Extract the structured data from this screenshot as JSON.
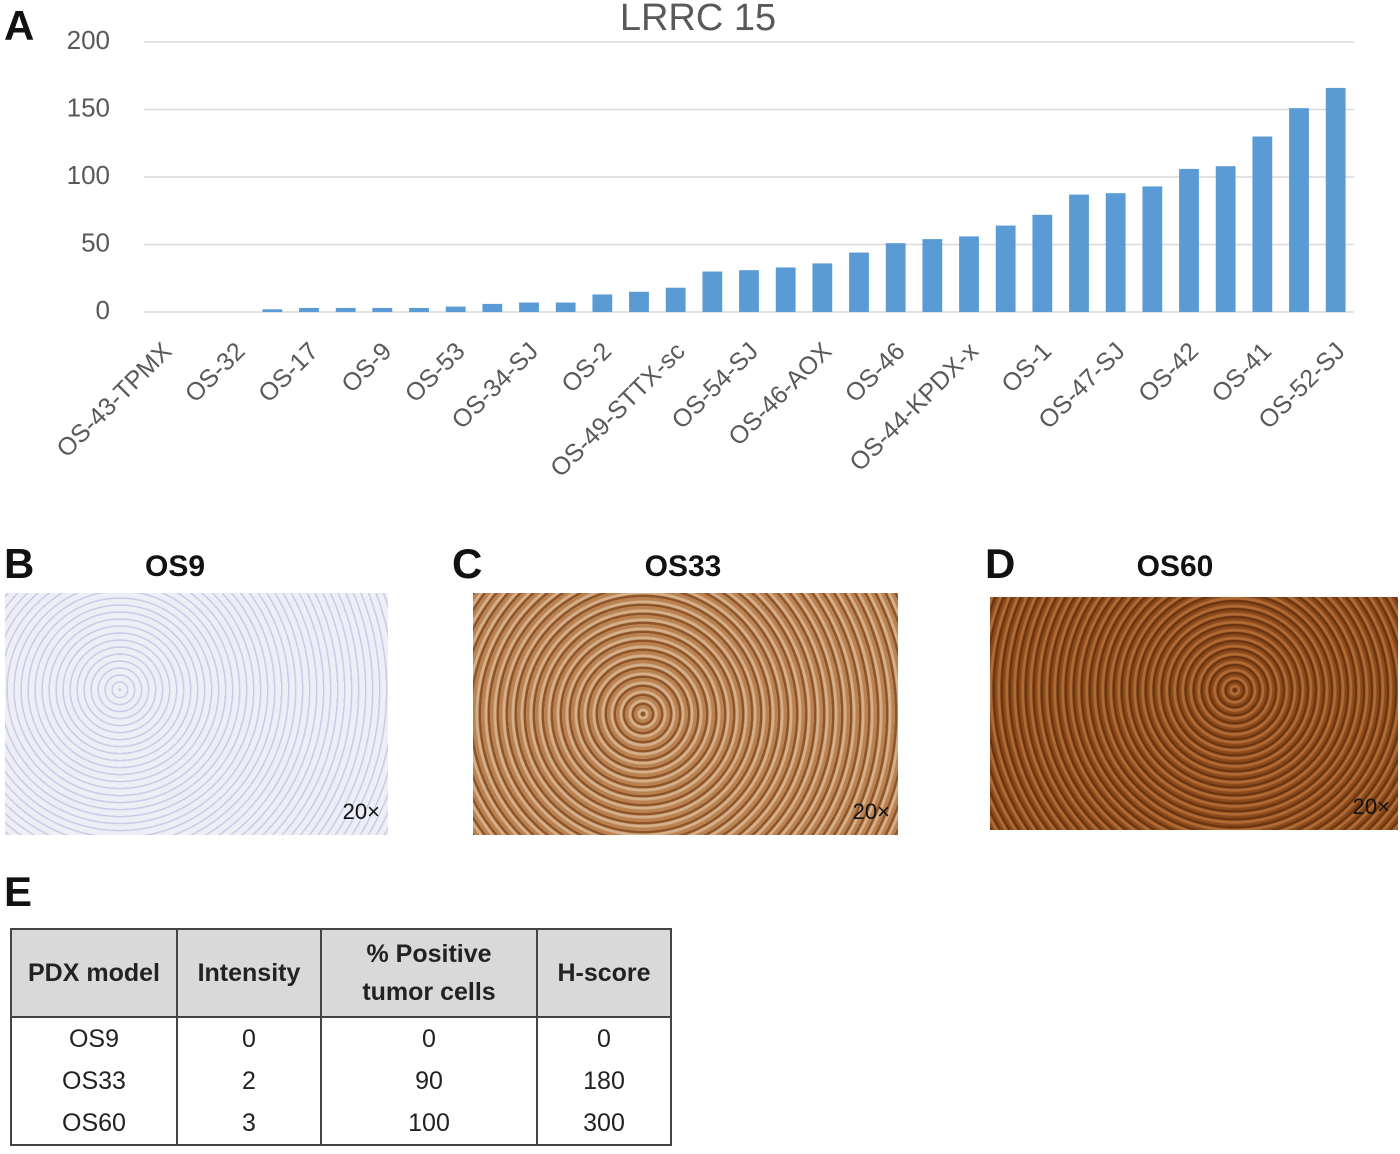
{
  "chart_data": {
    "type": "bar",
    "panel_letter": "A",
    "title": "LRRC 15",
    "categories": [
      "OS-43-TPMX",
      null,
      "OS-32",
      null,
      "OS-17",
      null,
      "OS-9",
      null,
      "OS-53",
      null,
      "OS-34-SJ",
      null,
      "OS-2",
      null,
      "OS-49-STTX-sc",
      null,
      "OS-54-SJ",
      null,
      "OS-46-AOX",
      null,
      "OS-46",
      null,
      "OS-44-KPDX-x",
      null,
      "OS-1",
      null,
      "OS-47-SJ",
      null,
      "OS-42",
      null,
      "OS-41",
      null,
      "OS-52-SJ"
    ],
    "values": [
      0,
      0,
      0,
      2,
      3,
      3,
      3,
      3,
      4,
      6,
      7,
      7,
      13,
      15,
      18,
      30,
      31,
      33,
      36,
      44,
      51,
      54,
      56,
      64,
      72,
      87,
      88,
      93,
      106,
      108,
      130,
      151,
      166
    ],
    "color": "#5b9bd5",
    "ylim": [
      0,
      200
    ],
    "yticks": [
      0,
      50,
      100,
      150,
      200
    ],
    "grid": true
  },
  "panels": [
    {
      "letter": "B",
      "title": "OS9",
      "magnification": "20×"
    },
    {
      "letter": "C",
      "title": "OS33",
      "magnification": "20×"
    },
    {
      "letter": "D",
      "title": "OS60",
      "magnification": "20×"
    }
  ],
  "table": {
    "letter": "E",
    "header": [
      "PDX model",
      "Intensity",
      "% Positive tumor cells",
      "H-score"
    ],
    "rows": [
      [
        "OS9",
        0,
        0,
        0
      ],
      [
        "OS33",
        2,
        90,
        180
      ],
      [
        "OS60",
        3,
        100,
        300
      ]
    ]
  }
}
